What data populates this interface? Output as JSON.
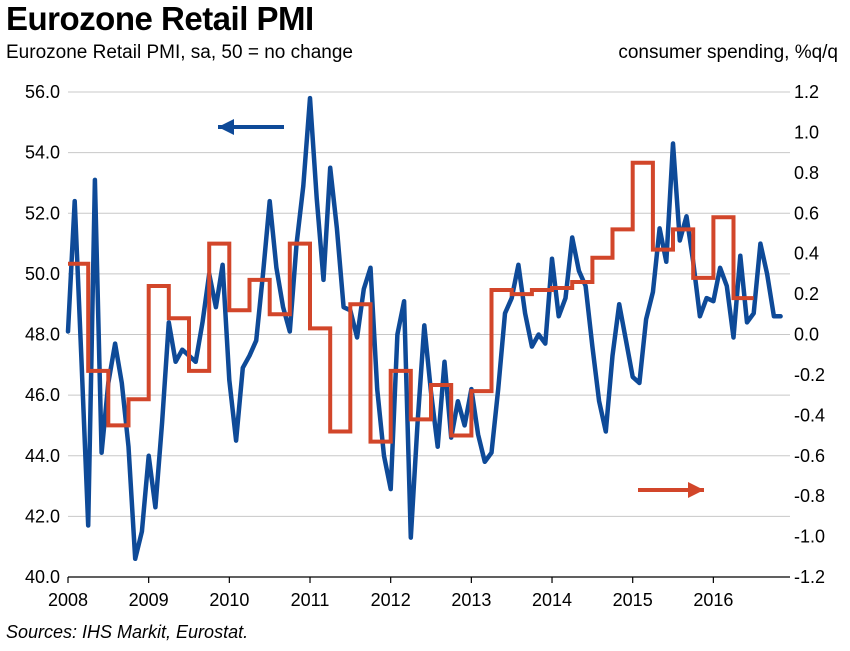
{
  "title": "Eurozone Retail PMI",
  "subtitle": "Eurozone Retail PMI, sa, 50 = no change",
  "right_axis_label": "consumer spending, %q/q",
  "source": "Sources: IHS Markit, Eurostat.",
  "colors": {
    "pmi": "#0E4A98",
    "spending": "#D2462A",
    "grid": "#c8c8c8",
    "axis": "#000000"
  },
  "chart_data": {
    "type": "line",
    "title": "Eurozone Retail PMI",
    "x_range": [
      2008,
      2016.95
    ],
    "x_ticks": [
      "2008",
      "2009",
      "2010",
      "2011",
      "2012",
      "2013",
      "2014",
      "2015",
      "2016"
    ],
    "left_axis": {
      "label": "Eurozone Retail PMI, sa, 50 = no change",
      "ylim": [
        40,
        56
      ],
      "ticks": [
        "40.0",
        "42.0",
        "44.0",
        "46.0",
        "48.0",
        "50.0",
        "52.0",
        "54.0",
        "56.0"
      ]
    },
    "right_axis": {
      "label": "consumer spending, %q/q",
      "ylim": [
        -1.2,
        1.2
      ],
      "ticks": [
        "-1.2",
        "-1.0",
        "-0.8",
        "-0.6",
        "-0.4",
        "-0.2",
        "0.0",
        "0.2",
        "0.4",
        "0.6",
        "0.8",
        "1.0",
        "1.2"
      ]
    },
    "series": [
      {
        "name": "Eurozone Retail PMI",
        "axis": "left",
        "frequency": "monthly",
        "start": 2008.0,
        "values": [
          48.1,
          52.4,
          47.2,
          41.7,
          53.1,
          44.1,
          46.4,
          47.7,
          46.4,
          44.3,
          40.6,
          41.5,
          44.0,
          42.3,
          45.1,
          48.4,
          47.1,
          47.5,
          47.3,
          47.1,
          48.4,
          50.0,
          48.9,
          50.3,
          46.5,
          44.5,
          46.9,
          47.3,
          47.8,
          50.0,
          52.4,
          50.2,
          48.9,
          48.1,
          51.0,
          52.9,
          55.8,
          52.5,
          49.8,
          53.5,
          51.5,
          48.9,
          48.8,
          47.9,
          49.5,
          50.2,
          46.2,
          44.0,
          42.9,
          48.0,
          49.1,
          41.3,
          45.1,
          48.3,
          46.1,
          44.3,
          47.1,
          44.6,
          45.8,
          45.0,
          46.2,
          44.7,
          43.8,
          44.1,
          46.2,
          48.7,
          49.2,
          50.3,
          48.7,
          47.6,
          48.0,
          47.7,
          50.5,
          48.6,
          49.2,
          51.2,
          50.1,
          49.6,
          47.6,
          45.8,
          44.8,
          47.3,
          49.0,
          47.8,
          46.6,
          46.4,
          48.5,
          49.4,
          51.5,
          50.4,
          54.3,
          51.1,
          51.9,
          50.4,
          48.6,
          49.2,
          49.1,
          50.2,
          49.6,
          47.9,
          50.6,
          48.4,
          48.7,
          51.0,
          50.0,
          48.6,
          48.6
        ]
      },
      {
        "name": "Consumer spending (%q/q)",
        "axis": "right",
        "frequency": "quarterly",
        "start": 2008.0,
        "values": [
          0.35,
          -0.18,
          -0.45,
          -0.32,
          0.24,
          0.08,
          -0.18,
          0.45,
          0.12,
          0.27,
          0.1,
          0.45,
          0.03,
          -0.48,
          0.15,
          -0.53,
          -0.18,
          -0.42,
          -0.25,
          -0.5,
          -0.28,
          0.22,
          0.2,
          0.22,
          0.23,
          0.26,
          0.38,
          0.52,
          0.85,
          0.42,
          0.52,
          0.28,
          0.58,
          0.18
        ]
      }
    ],
    "annotations": [
      {
        "type": "arrow",
        "direction": "left",
        "meaning": "PMI on left axis",
        "color": "pmi"
      },
      {
        "type": "arrow",
        "direction": "right",
        "meaning": "Spending on right axis",
        "color": "spending"
      }
    ]
  }
}
